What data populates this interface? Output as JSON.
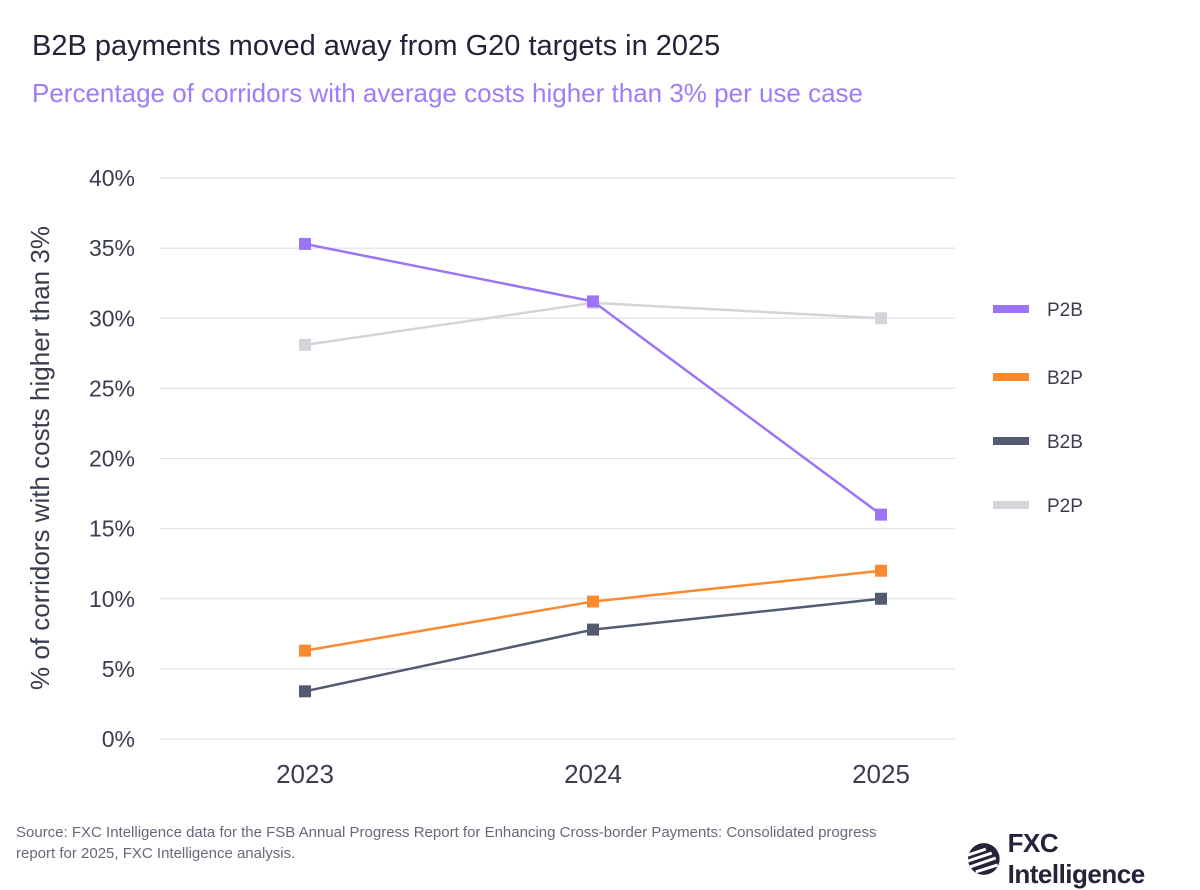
{
  "title": "B2B payments moved away from G20 targets in 2025",
  "subtitle": "Percentage of corridors with average costs higher than 3% per use case",
  "source": "Source: FXC Intelligence data for the FSB Annual Progress Report for Enhancing Cross-border Payments: Consolidated progress report for 2025, FXC Intelligence analysis.",
  "logo": "FXC Intelligence",
  "chart_data": {
    "type": "line",
    "title": "B2B payments moved away from G20 targets in 2025",
    "subtitle": "Percentage of corridors with average costs higher than 3% per use case",
    "xlabel": "",
    "ylabel": "% of corridors with costs higher than 3%",
    "categories": [
      "2023",
      "2024",
      "2025"
    ],
    "ylim": [
      0,
      40
    ],
    "yticks": [
      0,
      5,
      10,
      15,
      20,
      25,
      30,
      35,
      40
    ],
    "ytick_labels": [
      "0%",
      "5%",
      "10%",
      "15%",
      "20%",
      "25%",
      "30%",
      "35%",
      "40%"
    ],
    "grid": true,
    "legend_position": "right",
    "series": [
      {
        "name": "P2B",
        "color": "#9d74f8",
        "values": [
          35.3,
          31.2,
          16.0
        ]
      },
      {
        "name": "B2P",
        "color": "#fb8a2e",
        "values": [
          6.3,
          9.8,
          12.0
        ]
      },
      {
        "name": "B2B",
        "color": "#545a70",
        "values": [
          3.4,
          7.8,
          10.0
        ]
      },
      {
        "name": "P2P",
        "color": "#d4d4da",
        "values": [
          28.1,
          31.1,
          30.0
        ]
      }
    ]
  }
}
